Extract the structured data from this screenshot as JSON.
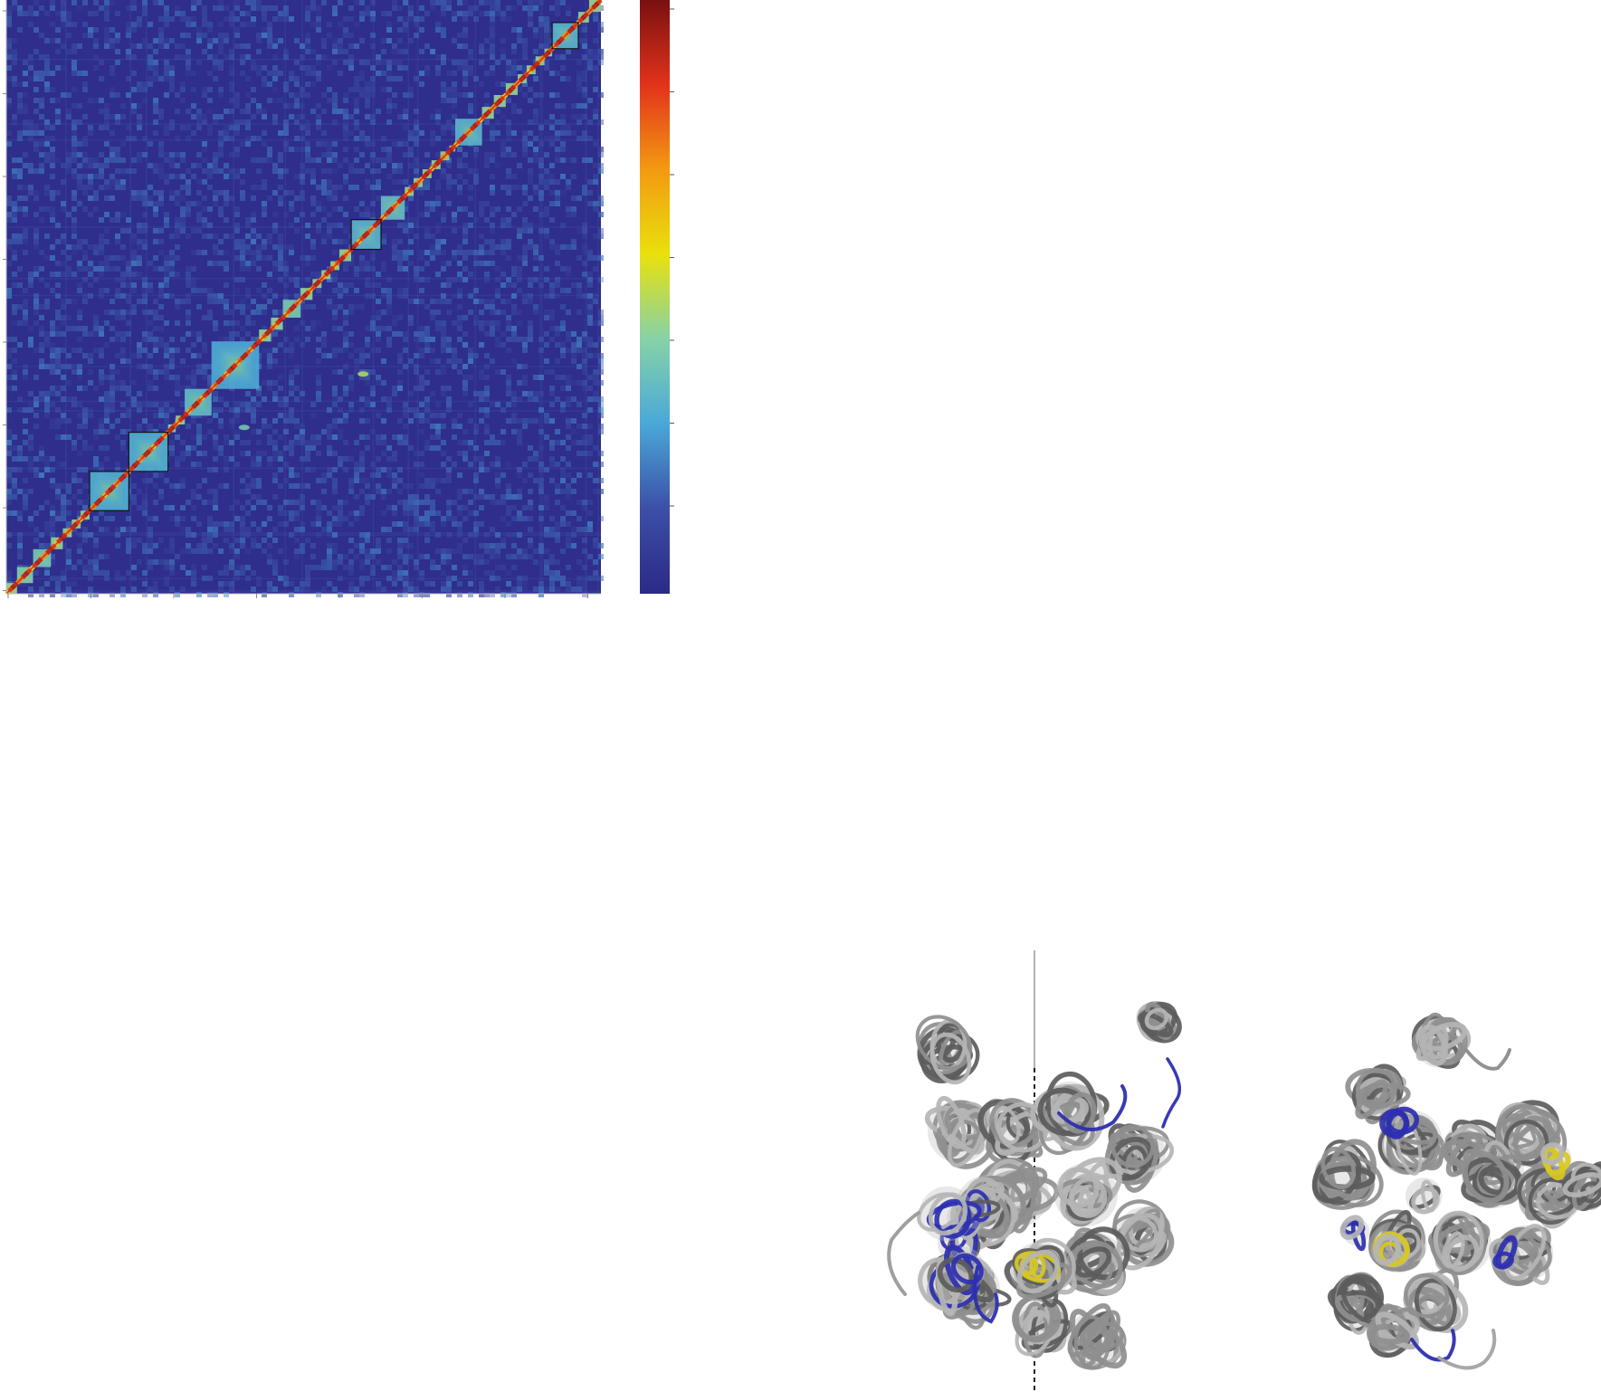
{
  "figure": {
    "heatmap": {
      "type": "contact-map",
      "colorscale": [
        "#2b2a86",
        "#3c4fa6",
        "#4aa8d8",
        "#86d2a8",
        "#e9e10c",
        "#f39a12",
        "#e2321b",
        "#7a1010"
      ],
      "background_color": "#2f2e8c",
      "domains": [
        {
          "start": 0.0,
          "end": 0.018,
          "level": 0.95
        },
        {
          "start": 0.018,
          "end": 0.045,
          "level": 0.85
        },
        {
          "start": 0.045,
          "end": 0.075,
          "level": 0.8
        },
        {
          "start": 0.075,
          "end": 0.095,
          "level": 0.9
        },
        {
          "start": 0.095,
          "end": 0.11,
          "level": 0.9
        },
        {
          "start": 0.11,
          "end": 0.125,
          "level": 0.9
        },
        {
          "start": 0.125,
          "end": 0.14,
          "level": 0.9
        },
        {
          "start": 0.14,
          "end": 0.206,
          "level": 0.62,
          "boxed": true
        },
        {
          "start": 0.206,
          "end": 0.272,
          "level": 0.62,
          "boxed": true
        },
        {
          "start": 0.272,
          "end": 0.285,
          "level": 0.9
        },
        {
          "start": 0.285,
          "end": 0.3,
          "level": 0.9
        },
        {
          "start": 0.3,
          "end": 0.345,
          "level": 0.7
        },
        {
          "start": 0.345,
          "end": 0.425,
          "level": 0.6
        },
        {
          "start": 0.425,
          "end": 0.445,
          "level": 0.9
        },
        {
          "start": 0.445,
          "end": 0.465,
          "level": 0.9
        },
        {
          "start": 0.465,
          "end": 0.495,
          "level": 0.8
        },
        {
          "start": 0.495,
          "end": 0.515,
          "level": 0.9
        },
        {
          "start": 0.515,
          "end": 0.53,
          "level": 0.9
        },
        {
          "start": 0.53,
          "end": 0.545,
          "level": 0.9
        },
        {
          "start": 0.545,
          "end": 0.56,
          "level": 0.9
        },
        {
          "start": 0.56,
          "end": 0.58,
          "level": 0.9
        },
        {
          "start": 0.58,
          "end": 0.63,
          "level": 0.66,
          "boxed": true
        },
        {
          "start": 0.63,
          "end": 0.67,
          "level": 0.72
        },
        {
          "start": 0.67,
          "end": 0.685,
          "level": 0.9
        },
        {
          "start": 0.685,
          "end": 0.7,
          "level": 0.9
        },
        {
          "start": 0.7,
          "end": 0.715,
          "level": 0.9
        },
        {
          "start": 0.715,
          "end": 0.73,
          "level": 0.9
        },
        {
          "start": 0.73,
          "end": 0.745,
          "level": 0.9
        },
        {
          "start": 0.745,
          "end": 0.755,
          "level": 0.95
        },
        {
          "start": 0.755,
          "end": 0.8,
          "level": 0.66
        },
        {
          "start": 0.8,
          "end": 0.82,
          "level": 0.9
        },
        {
          "start": 0.82,
          "end": 0.84,
          "level": 0.9
        },
        {
          "start": 0.84,
          "end": 0.86,
          "level": 0.9
        },
        {
          "start": 0.86,
          "end": 0.875,
          "level": 0.9
        },
        {
          "start": 0.875,
          "end": 0.89,
          "level": 0.9
        },
        {
          "start": 0.89,
          "end": 0.905,
          "level": 0.9
        },
        {
          "start": 0.905,
          "end": 0.918,
          "level": 0.9
        },
        {
          "start": 0.918,
          "end": 0.962,
          "level": 0.66,
          "boxed": true
        },
        {
          "start": 0.962,
          "end": 0.98,
          "level": 0.9
        },
        {
          "start": 0.98,
          "end": 1.0,
          "level": 0.92
        }
      ],
      "off_diagonal_spots": [
        {
          "i": 0.37,
          "j": 0.6,
          "level": 0.5
        },
        {
          "i": 0.28,
          "j": 0.4,
          "level": 0.4
        }
      ]
    },
    "colorbar": {
      "ticks": 7
    },
    "structures": {
      "colors": {
        "chain": "#8f8f8f",
        "chain_dark": "#5c5c5c",
        "highlight_a": "#2d2fb0",
        "highlight_b": "#d8c820"
      },
      "views": [
        {
          "id": "left",
          "globules": 12
        },
        {
          "id": "right",
          "globules": 13
        }
      ]
    }
  }
}
